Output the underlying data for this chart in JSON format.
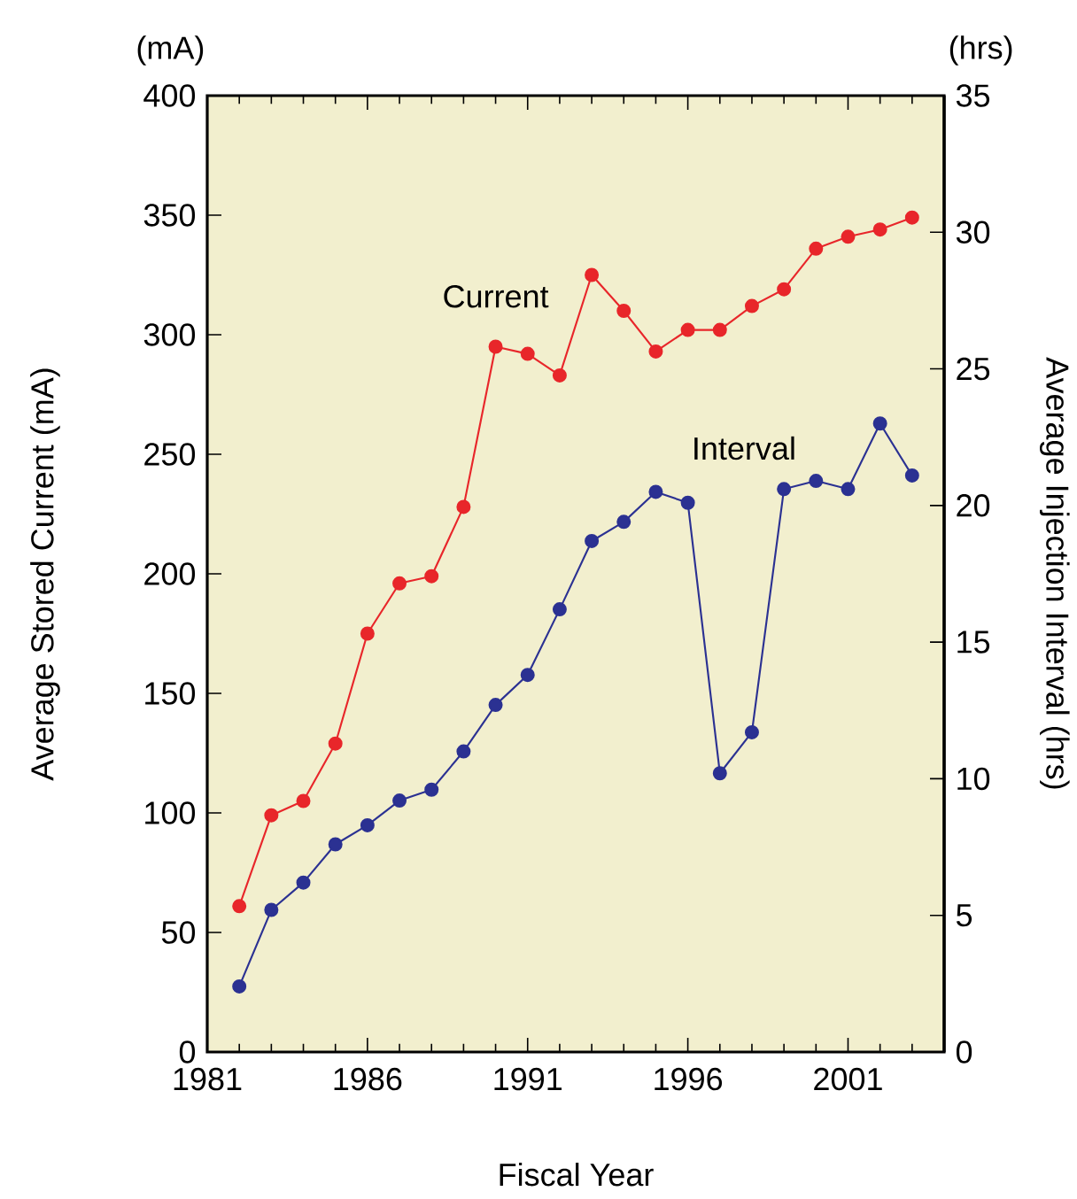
{
  "chart_data": {
    "type": "line",
    "xlabel": "Fiscal Year",
    "ylabel": "Average Stored Current (mA)",
    "y2label": "Average Injection Interval (hrs)",
    "annotations": [
      "(mA)",
      "(hrs)"
    ],
    "x": [
      1982,
      1983,
      1984,
      1985,
      1986,
      1987,
      1988,
      1989,
      1990,
      1991,
      1992,
      1993,
      1994,
      1995,
      1996,
      1997,
      1998,
      1999,
      2000,
      2001,
      2002,
      2003
    ],
    "series": [
      {
        "name": "Current",
        "color": "#e8262a",
        "values": [
          61,
          99,
          105,
          129,
          175,
          196,
          199,
          228,
          295,
          292,
          283,
          325,
          310,
          293,
          302,
          302,
          312,
          319,
          336,
          341,
          344,
          349
        ]
      },
      {
        "name": "Interval",
        "color": "#2b3192",
        "axis": "y2",
        "values": [
          2.4,
          5.2,
          6.2,
          7.6,
          8.3,
          9.2,
          9.6,
          11.0,
          12.7,
          13.8,
          16.2,
          18.7,
          19.4,
          20.5,
          20.1,
          10.2,
          11.7,
          20.6,
          20.9,
          20.6,
          23.0,
          21.1
        ]
      }
    ],
    "xlim": [
      1981,
      2004
    ],
    "xticks": [
      1981,
      {
        "value": 1982,
        "label": null
      },
      {
        "value": 1983,
        "label": null
      },
      {
        "value": 1984,
        "label": null
      },
      {
        "value": 1985,
        "label": null
      },
      1986,
      {
        "value": 1987,
        "label": null
      },
      {
        "value": 1988,
        "label": null
      },
      {
        "value": 1989,
        "label": null
      },
      {
        "value": 1990,
        "label": null
      },
      1991,
      {
        "value": 1992,
        "label": null
      },
      {
        "value": 1993,
        "label": null
      },
      {
        "value": 1994,
        "label": null
      },
      {
        "value": 1995,
        "label": null
      },
      1996,
      {
        "value": 1997,
        "label": null
      },
      {
        "value": 1998,
        "label": null
      },
      {
        "value": 1999,
        "label": null
      },
      {
        "value": 2000,
        "label": null
      },
      2001,
      {
        "value": 2002,
        "label": null
      },
      {
        "value": 2003,
        "label": null
      }
    ],
    "ylim": [
      0,
      400
    ],
    "yticks": [
      0,
      50,
      100,
      150,
      200,
      250,
      300,
      350,
      400
    ],
    "y2lim": [
      0,
      35
    ],
    "y2ticks": [
      0,
      5,
      10,
      15,
      20,
      25,
      30,
      35
    ],
    "marker": "circle",
    "line_style": "solid",
    "grid": false
  }
}
